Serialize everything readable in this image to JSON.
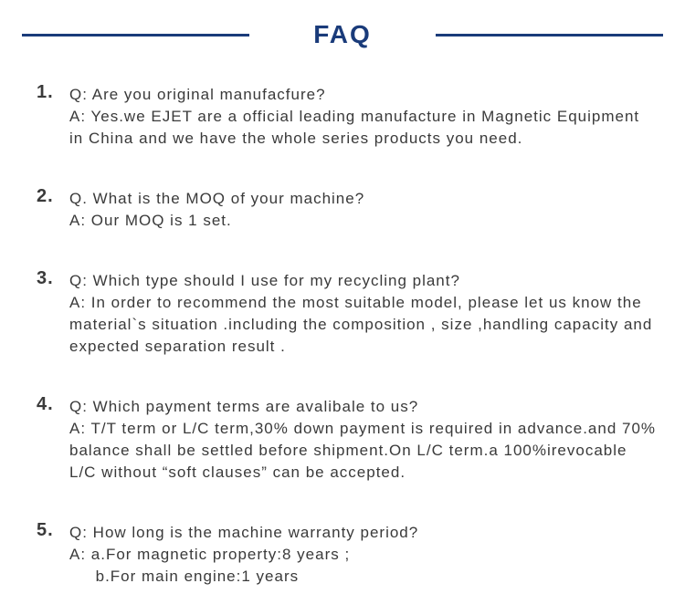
{
  "colors": {
    "primary": "#1a3b7a",
    "text": "#3a3a3a",
    "background": "#ffffff"
  },
  "title": "FAQ",
  "items": [
    {
      "num": "1.",
      "q": "Q: Are you  original manufacfure?",
      "a": "A: Yes.we EJET are a official leading manufacture in Magnetic Equipment in China and we have the whole series products you need."
    },
    {
      "num": "2.",
      "q": "Q. What is the MOQ of your machine?",
      "a": "A: Our MOQ is 1 set."
    },
    {
      "num": "3.",
      "q": "Q: Which type should I use for my recycling plant?",
      "a": "A: In order to recommend the most suitable model, please let us know the material`s situation .including the composition , size ,handling capacity and expected separation result ."
    },
    {
      "num": "4.",
      "q": "Q: Which payment terms are avalibale to us?",
      "a": "A: T/T term or L/C term,30% down payment is required in advance.and 70% balance shall be settled before shipment.On L/C term.a 100%irevocable L/C without “soft clauses” can be accepted."
    },
    {
      "num": "5.",
      "q": "Q: How long is the machine warranty period?",
      "a": "A: a.For magnetic property:8 years ;\n     b.For main engine:1 years"
    }
  ]
}
